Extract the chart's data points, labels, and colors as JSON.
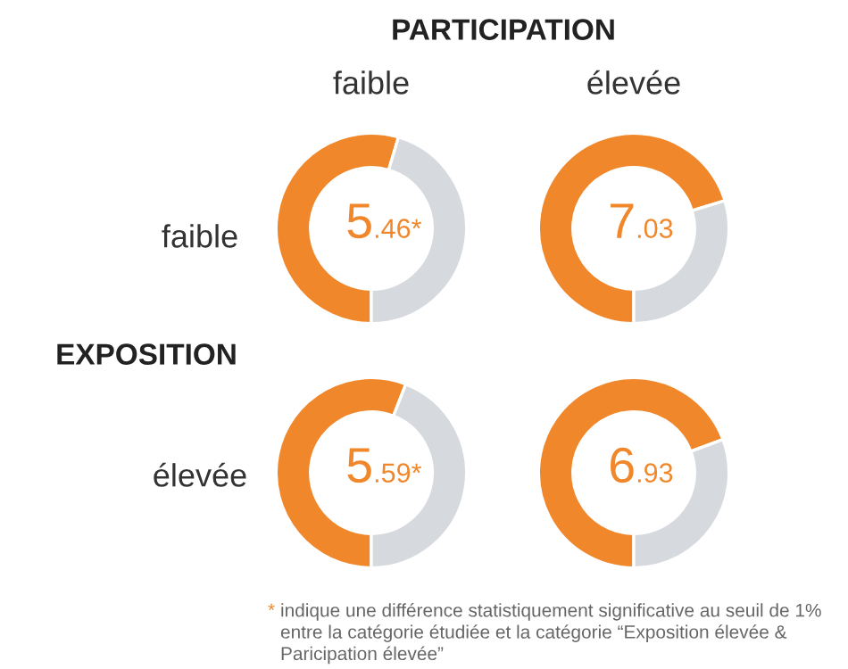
{
  "chart_data": [
    {
      "type": "donut",
      "categories": [
        null,
        null
      ],
      "values": [
        54.6,
        45.4
      ],
      "colors": [
        "#f0872a",
        "#d6d9de"
      ],
      "annotations": [
        "5.46*",
        "PARTICIPATION",
        "faible",
        "élevée",
        "EXPOSITION",
        "faible",
        "élevée",
        "* indique une différence statistiquement significative au seuil de 1% entre la catégorie étudiée et la catégorie “Exposition élevée & Paricipation élevée”"
      ]
    },
    {
      "type": "donut",
      "categories": [
        null,
        null
      ],
      "values": [
        70.3,
        29.7
      ],
      "colors": [
        "#f0872a",
        "#d6d9de"
      ],
      "annotations": [
        "7.03"
      ]
    },
    {
      "type": "donut",
      "categories": [
        null,
        null
      ],
      "values": [
        55.9,
        44.1
      ],
      "colors": [
        "#f0872a",
        "#d6d9de"
      ],
      "annotations": [
        "5.59*"
      ]
    },
    {
      "type": "donut",
      "categories": [
        null,
        null
      ],
      "values": [
        69.3,
        30.7
      ],
      "colors": [
        "#f0872a",
        "#d6d9de"
      ],
      "annotations": [
        "6.93"
      ]
    }
  ]
}
